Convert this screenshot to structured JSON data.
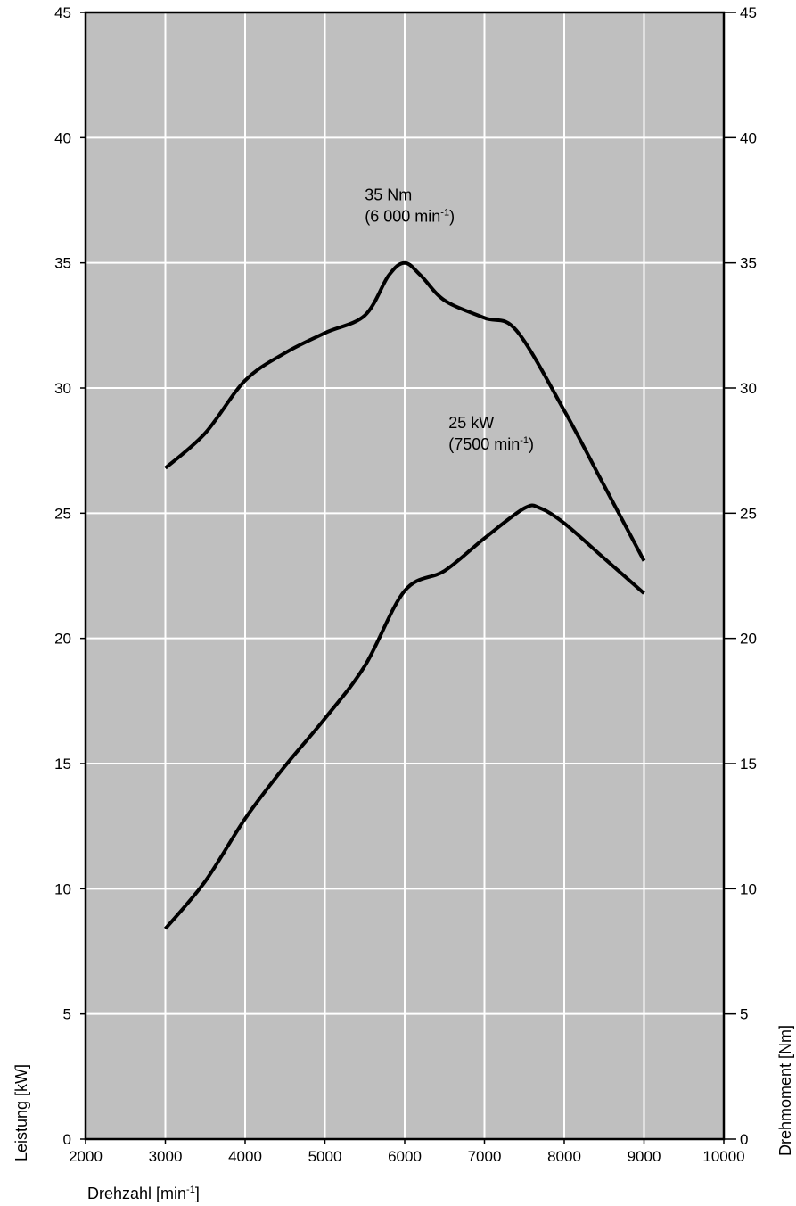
{
  "chart_data": {
    "type": "line",
    "xlabel": "Drehzahl [min",
    "xlabel_sup": "-1",
    "xlabel_end": "]",
    "ylabel_left": "Leistung [kW]",
    "ylabel_right": "Drehmoment [Nm]",
    "xlim": [
      2000,
      10000
    ],
    "ylim": [
      0,
      45
    ],
    "x_ticks": [
      "2000",
      "3000",
      "4000",
      "5000",
      "6000",
      "7000",
      "8000",
      "9000",
      "10000"
    ],
    "y_ticks": [
      "0",
      "5",
      "10",
      "15",
      "20",
      "25",
      "30",
      "35",
      "40",
      "45"
    ],
    "grid": true,
    "background_color": "#bfbfbf",
    "grid_color": "#ffffff",
    "series": [
      {
        "axis": "right",
        "x": [
          3000,
          3500,
          4000,
          4500,
          5000,
          5500,
          5800,
          6000,
          6200,
          6500,
          7000,
          7400,
          8000,
          8500,
          9000
        ],
        "values": [
          26.8,
          28.2,
          30.3,
          31.4,
          32.2,
          32.9,
          34.5,
          35.0,
          34.5,
          33.5,
          32.8,
          32.3,
          29.1,
          26.1,
          23.1
        ]
      },
      {
        "axis": "left",
        "x": [
          3000,
          3500,
          4000,
          4500,
          5000,
          5500,
          6000,
          6500,
          7000,
          7500,
          7700,
          8000,
          8500,
          9000
        ],
        "values": [
          8.4,
          10.3,
          12.8,
          14.9,
          16.8,
          18.9,
          21.9,
          22.7,
          24.0,
          25.2,
          25.2,
          24.6,
          23.2,
          21.8
        ]
      }
    ],
    "annotations": [
      {
        "line1": "35 Nm",
        "line2_pre": "(6 000 min",
        "line2_sup": "-1",
        "line2_post": ")",
        "x": 5500,
        "y": 37.5
      },
      {
        "line1": "25 kW",
        "line2_pre": "(7500 min",
        "line2_sup": "-1",
        "line2_post": ")",
        "x": 6550,
        "y": 28.4
      }
    ]
  }
}
